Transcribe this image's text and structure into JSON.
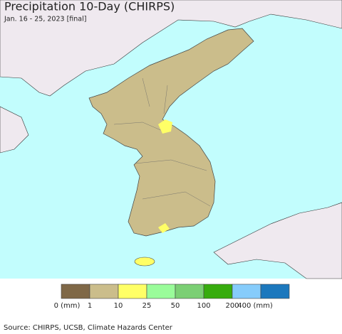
{
  "header": {
    "title": "Precipitation 10-Day (CHIRPS)",
    "subtitle": "Jan. 16 - 25, 2023 [final]"
  },
  "legend": {
    "colors": [
      "#7f6847",
      "#cbbd8b",
      "#ffff66",
      "#9afc9a",
      "#7bcf74",
      "#37ac0e",
      "#86ccfb",
      "#1c78bd"
    ],
    "labels": [
      "0 (mm)",
      "1",
      "10",
      "25",
      "50",
      "100",
      "200",
      "400 (mm)"
    ]
  },
  "source": "Source: CHIRPS, UCSB, Climate Hazards Center"
}
